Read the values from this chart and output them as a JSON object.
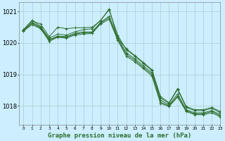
{
  "title": "Graphe pression niveau de la mer (hPa)",
  "bg_color": "#cceeff",
  "grid_color": "#aacccc",
  "line_color": "#2d6e2d",
  "ylim": [
    1017.4,
    1021.3
  ],
  "yticks": [
    1018,
    1019,
    1020,
    1021
  ],
  "series": [
    [
      1020.4,
      1020.65,
      1020.55,
      1020.1,
      1020.25,
      1020.22,
      1020.3,
      1020.32,
      1020.38,
      1020.65,
      1020.92,
      1020.2,
      1019.68,
      1019.5,
      1019.28,
      1019.05,
      1018.15,
      1018.0,
      1018.32,
      1017.88,
      1017.78,
      1017.78,
      1017.82,
      1017.7
    ],
    [
      1020.38,
      1020.68,
      1020.52,
      1020.12,
      1020.22,
      1020.2,
      1020.3,
      1020.35,
      1020.35,
      1020.68,
      1020.88,
      1020.18,
      1019.72,
      1019.52,
      1019.3,
      1019.08,
      1018.18,
      1018.03,
      1018.38,
      1017.9,
      1017.8,
      1017.8,
      1017.85,
      1017.72
    ],
    [
      1020.36,
      1020.63,
      1020.48,
      1020.08,
      1020.2,
      1020.18,
      1020.28,
      1020.32,
      1020.3,
      1020.62,
      1020.82,
      1020.15,
      1019.65,
      1019.48,
      1019.25,
      1019.02,
      1018.12,
      1018.0,
      1018.3,
      1017.85,
      1017.75,
      1017.75,
      1017.8,
      1017.68
    ],
    [
      1020.42,
      1020.72,
      1020.5,
      1020.08,
      1020.28,
      1020.25,
      1020.35,
      1020.4,
      1020.45,
      1020.75,
      1021.0,
      1020.28,
      1019.8,
      1019.6,
      1019.38,
      1019.15,
      1018.28,
      1018.08,
      1018.55,
      1017.95,
      1017.88,
      1017.88,
      1017.95,
      1017.82
    ]
  ],
  "top_line": [
    1020.42,
    1020.7,
    1020.52,
    1020.15,
    1020.5,
    1020.42,
    1020.48,
    1020.5,
    1020.52,
    1020.72,
    1021.08,
    1020.15,
    1019.82,
    1019.58,
    1019.35,
    1019.1,
    1018.28,
    1018.08,
    1018.52,
    1017.95,
    1017.82,
    1017.82,
    1017.9,
    1017.75
  ]
}
